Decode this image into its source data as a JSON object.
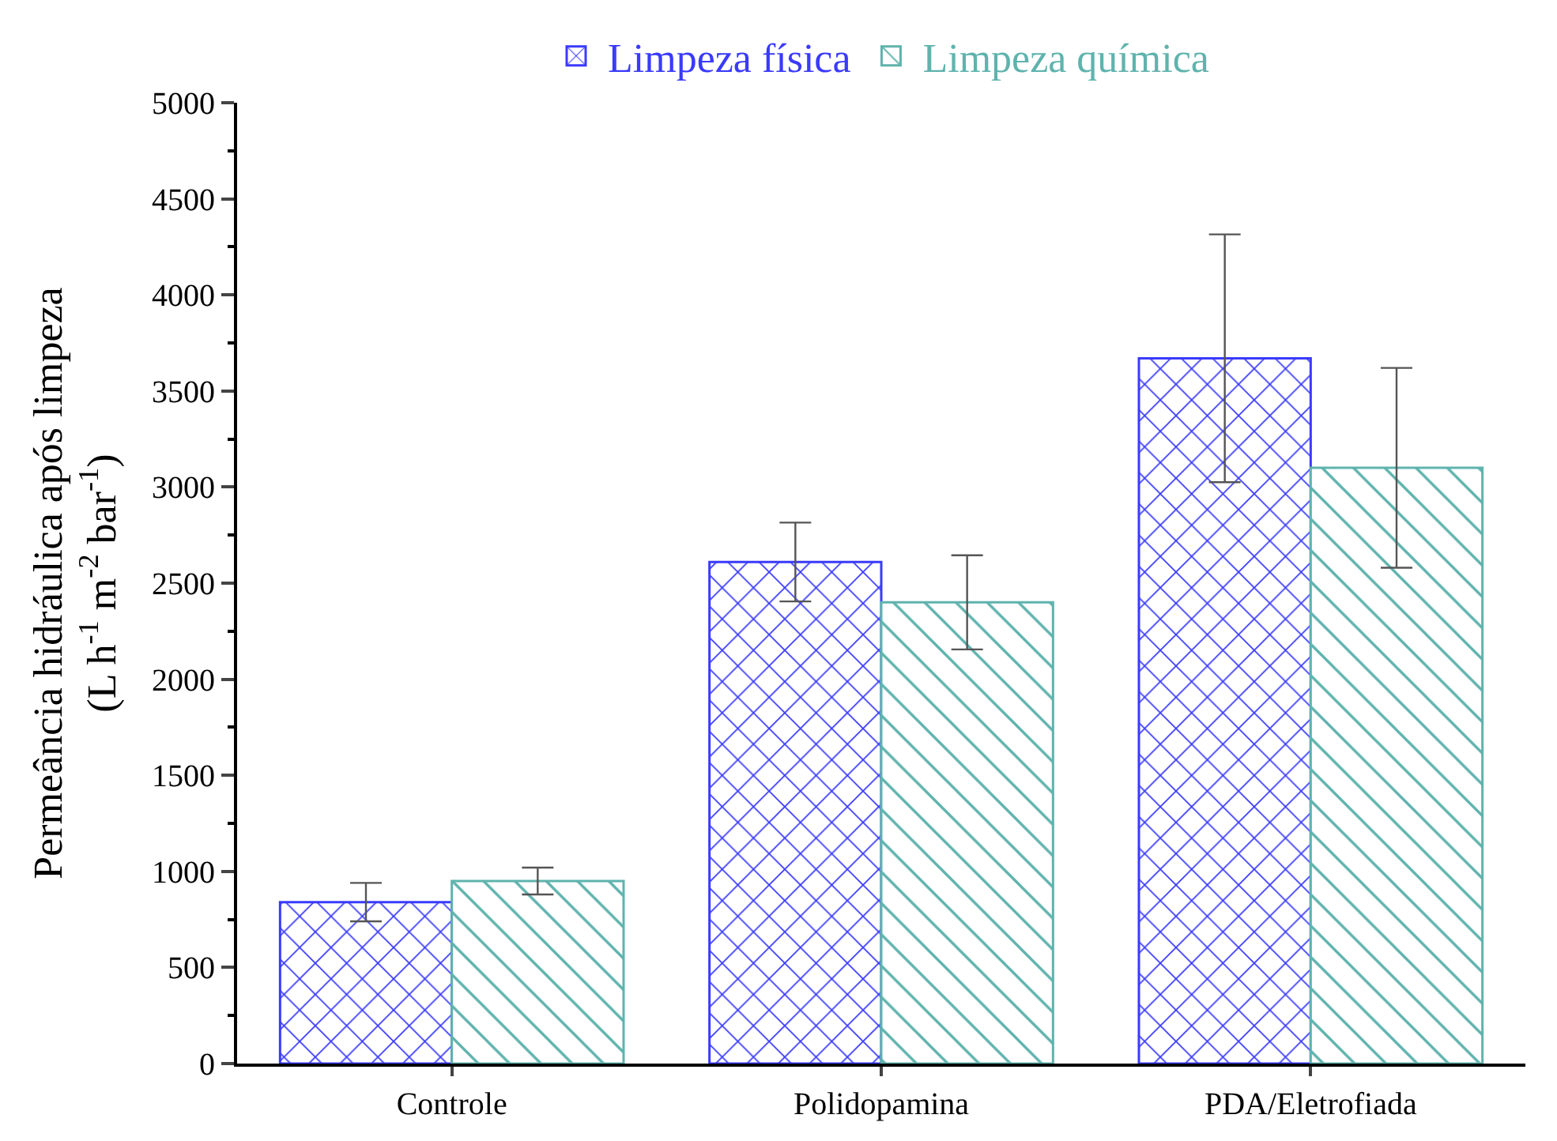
{
  "chart_data": {
    "type": "bar",
    "ylabel": "Permeância hidráulica após limpeza\n(L h$^{-1}$ m$^{-2}$ bar$^{-1}$)",
    "categories": [
      "Controle",
      "Polidopamina",
      "PDA/Eletrofiada"
    ],
    "series": [
      {
        "name": "Limpeza física",
        "color": "#3a3aff",
        "values": [
          840,
          2610,
          3670
        ],
        "errors": [
          100,
          205,
          645
        ]
      },
      {
        "name": "Limpeza química",
        "color": "#5fb3ad",
        "values": [
          950,
          2400,
          3100
        ],
        "errors": [
          70,
          245,
          520
        ]
      }
    ],
    "ylim": [
      0,
      5000
    ],
    "yticks": [
      0,
      500,
      1000,
      1500,
      2000,
      2500,
      3000,
      3500,
      4000,
      4500,
      5000
    ],
    "legend": "top"
  }
}
